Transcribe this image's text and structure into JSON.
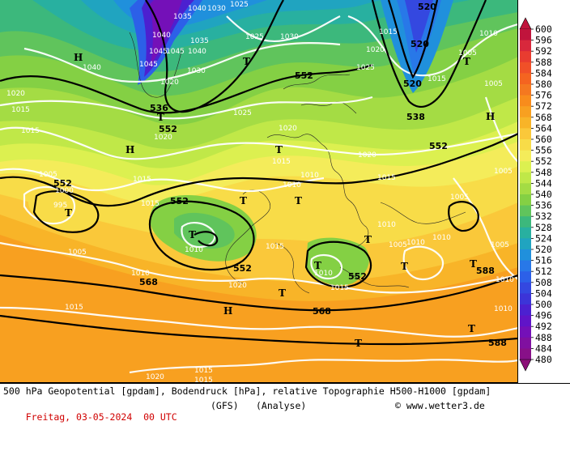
{
  "footer": {
    "line1": "500 hPa Geopotential [gpdam], Bodendruck [hPa], relative Topographie H500-H1000 [gpdam]",
    "date": "Freitag, 03-05-2024  00 UTC",
    "model": "(GFS)",
    "mode": "(Analyse)",
    "brand": "www.wetter3.de"
  },
  "legend": {
    "levels": [
      "600",
      "596",
      "592",
      "588",
      "584",
      "580",
      "576",
      "572",
      "568",
      "564",
      "560",
      "556",
      "552",
      "548",
      "544",
      "540",
      "536",
      "532",
      "528",
      "524",
      "520",
      "516",
      "512",
      "508",
      "504",
      "500",
      "496",
      "492",
      "488",
      "484",
      "480"
    ],
    "colors": [
      "#c0143c",
      "#d8283c",
      "#e83c30",
      "#f05028",
      "#f46420",
      "#f47820",
      "#f88c1c",
      "#f8a020",
      "#f8b428",
      "#fac83a",
      "#f8dc48",
      "#f4ec5a",
      "#dcf050",
      "#c0e848",
      "#a4dc44",
      "#84d044",
      "#60c45c",
      "#3cb87c",
      "#28b0a0",
      "#20a4c0",
      "#2090dc",
      "#2878e8",
      "#2c60e8",
      "#3448e0",
      "#3c34d8",
      "#4c20d0",
      "#6014c8",
      "#7410b8",
      "#8010a0",
      "#881088",
      "#8c1078"
    ],
    "arrow_top_color": "#c0143c",
    "arrow_bottom_color": "#8c1078"
  },
  "map_labels": {
    "geopotential": [
      "552",
      "536",
      "520",
      "520",
      "520",
      "538",
      "552",
      "552",
      "552",
      "552",
      "552",
      "552",
      "588",
      "568",
      "568",
      "588",
      "584",
      "552"
    ],
    "pressure": [
      "1040",
      "1035",
      "1030",
      "1025",
      "1025",
      "1030",
      "1040",
      "1045",
      "1040",
      "1045",
      "1035",
      "1045",
      "1040",
      "1020",
      "1020",
      "1030",
      "1015",
      "1010",
      "1025",
      "1020",
      "1025",
      "1015",
      "1015",
      "1005",
      "1005",
      "1020",
      "1020",
      "1015",
      "1015",
      "1015",
      "1015",
      "1010",
      "1005",
      "1000",
      "995",
      "1005",
      "1020",
      "1010",
      "1015",
      "1010",
      "1015",
      "1010",
      "1010",
      "1010",
      "1005",
      "1005",
      "1005",
      "1005",
      "1010",
      "1010",
      "1015",
      "1010",
      "1020",
      "1015",
      "1020",
      "1015",
      "1015",
      "1010"
    ],
    "highs": [
      "H",
      "H",
      "H",
      "H"
    ],
    "lows": [
      "T",
      "T",
      "T",
      "T",
      "T",
      "T",
      "T",
      "T",
      "T",
      "T",
      "T",
      "T",
      "T",
      "T",
      "T"
    ]
  }
}
